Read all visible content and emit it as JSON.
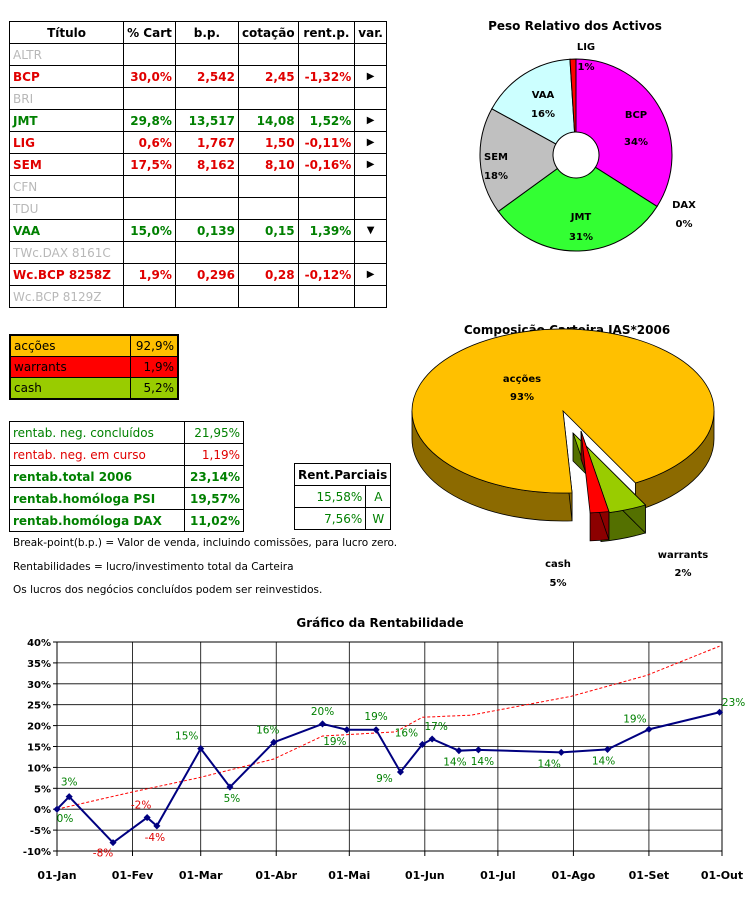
{
  "holdings_table": {
    "headers": [
      "Título",
      "% Cart",
      "b.p.",
      "cotação",
      "rent.p.",
      "var."
    ],
    "rows": [
      {
        "title": "ALTR",
        "pct": "",
        "bp": "",
        "quote": "",
        "rent": "",
        "var": "",
        "style": "grey"
      },
      {
        "title": "BCP",
        "pct": "30,0%",
        "bp": "2,542",
        "quote": "2,45",
        "rent": "-1,32%",
        "var": "right",
        "style": "red"
      },
      {
        "title": "BRI",
        "pct": "",
        "bp": "",
        "quote": "",
        "rent": "",
        "var": "",
        "style": "grey"
      },
      {
        "title": "JMT",
        "pct": "29,8%",
        "bp": "13,517",
        "quote": "14,08",
        "rent": "1,52%",
        "var": "right",
        "style": "green"
      },
      {
        "title": "LIG",
        "pct": "0,6%",
        "bp": "1,767",
        "quote": "1,50",
        "rent": "-0,11%",
        "var": "right",
        "style": "red"
      },
      {
        "title": "SEM",
        "pct": "17,5%",
        "bp": "8,162",
        "quote": "8,10",
        "rent": "-0,16%",
        "var": "right",
        "style": "red"
      },
      {
        "title": "CFN",
        "pct": "",
        "bp": "",
        "quote": "",
        "rent": "",
        "var": "",
        "style": "grey"
      },
      {
        "title": "TDU",
        "pct": "",
        "bp": "",
        "quote": "",
        "rent": "",
        "var": "",
        "style": "grey"
      },
      {
        "title": "VAA",
        "pct": "15,0%",
        "bp": "0,139",
        "quote": "0,15",
        "rent": "1,39%",
        "var": "down",
        "style": "green"
      },
      {
        "title": "TWc.DAX 8161C",
        "pct": "",
        "bp": "",
        "quote": "",
        "rent": "",
        "var": "",
        "style": "grey"
      },
      {
        "title": "Wc.BCP 8258Z",
        "pct": "1,9%",
        "bp": "0,296",
        "quote": "0,28",
        "rent": "-0,12%",
        "var": "right",
        "style": "red"
      },
      {
        "title": "Wc.BCP 8129Z",
        "pct": "",
        "bp": "",
        "quote": "",
        "rent": "",
        "var": "",
        "style": "grey"
      }
    ]
  },
  "allocation": [
    {
      "label": "acções",
      "value": "92,9%",
      "color": "#ffc000",
      "text_color": "#000000"
    },
    {
      "label": "warrants",
      "value": "1,9%",
      "color": "#ff0000",
      "text_color": "#000000"
    },
    {
      "label": "cash",
      "value": "5,2%",
      "color": "#99cc00",
      "text_color": "#000000"
    }
  ],
  "returns": [
    {
      "label": "rentab. neg. concluídos",
      "value": "21,95%",
      "style": "green-normal"
    },
    {
      "label": "rentab. neg. em curso",
      "value": "1,19%",
      "style": "red-normal"
    },
    {
      "label": "rentab.total 2006",
      "value": "23,14%",
      "style": "green"
    },
    {
      "label": "rentab.homóloga PSI",
      "value": "19,57%",
      "style": "green"
    },
    {
      "label": "rentab.homóloga DAX",
      "value": "11,02%",
      "style": "green"
    }
  ],
  "partial_returns": {
    "header": "Rent.Parciais",
    "rows": [
      {
        "value": "15,58%",
        "tag": "A"
      },
      {
        "value": "7,56%",
        "tag": "W"
      }
    ]
  },
  "notes": [
    "Break-point(b.p.) = Valor de venda, incluindo comissões, para lucro zero.",
    "Rentabilidades = lucro/investimento total da Carteira",
    "Os lucros dos negócios concluídos podem ser reinvestidos."
  ],
  "chart_data": [
    {
      "type": "pie",
      "title": "Peso Relativo dos Activos",
      "donut": true,
      "slices": [
        {
          "label": "BCP",
          "value": 34,
          "value_label": "34%",
          "color": "#ff00ff"
        },
        {
          "label": "DAX",
          "value": 0,
          "value_label": "0%",
          "color": "#000080"
        },
        {
          "label": "JMT",
          "value": 31,
          "value_label": "31%",
          "color": "#33ff33"
        },
        {
          "label": "SEM",
          "value": 18,
          "value_label": "18%",
          "color": "#c0c0c0"
        },
        {
          "label": "VAA",
          "value": 16,
          "value_label": "16%",
          "color": "#ccffff"
        },
        {
          "label": "LIG",
          "value": 1,
          "value_label": "1%",
          "color": "#ff0000"
        }
      ]
    },
    {
      "type": "pie",
      "title": "Composição Carteira JAS*2006",
      "three_d": true,
      "slices": [
        {
          "label": "acções",
          "value": 93,
          "value_label": "93%",
          "color": "#ffc000"
        },
        {
          "label": "warrants",
          "value": 2,
          "value_label": "2%",
          "color": "#ff0000"
        },
        {
          "label": "cash",
          "value": 5,
          "value_label": "5%",
          "color": "#99cc00"
        }
      ]
    },
    {
      "type": "line",
      "title": "Gráfico da Rentabilidade",
      "ylim": [
        -10,
        40
      ],
      "y_ticks": [
        "-10%",
        "-5%",
        "0%",
        "5%",
        "10%",
        "15%",
        "20%",
        "25%",
        "30%",
        "35%",
        "40%"
      ],
      "x_ticks": [
        "01-Jan",
        "01-Fev",
        "01-Mar",
        "01-Abr",
        "01-Mai",
        "01-Jun",
        "01-Jul",
        "01-Ago",
        "01-Set",
        "01-Out"
      ],
      "grid": true,
      "series": [
        {
          "style": "solid-marker",
          "color": "#000080",
          "points": [
            {
              "x": "2006-01-01",
              "y": 0,
              "label": "0%"
            },
            {
              "x": "2006-01-06",
              "y": 3,
              "label": "3%"
            },
            {
              "x": "2006-01-24",
              "y": -8,
              "label": "-8%"
            },
            {
              "x": "2006-02-07",
              "y": -2,
              "label": "-2%"
            },
            {
              "x": "2006-02-11",
              "y": -4,
              "label": "-4%"
            },
            {
              "x": "2006-03-01",
              "y": 14.5,
              "label": "15%"
            },
            {
              "x": "2006-03-13",
              "y": 5.3,
              "label": "5%"
            },
            {
              "x": "2006-03-31",
              "y": 16,
              "label": "16%"
            },
            {
              "x": "2006-04-20",
              "y": 20.4,
              "label": "20%"
            },
            {
              "x": "2006-04-30",
              "y": 19,
              "label": "19%"
            },
            {
              "x": "2006-05-12",
              "y": 19,
              "label": "19%"
            },
            {
              "x": "2006-05-22",
              "y": 8.9,
              "label": "9%"
            },
            {
              "x": "2006-05-31",
              "y": 15.5,
              "label": "16%"
            },
            {
              "x": "2006-06-04",
              "y": 16.8,
              "label": "17%"
            },
            {
              "x": "2006-06-15",
              "y": 14,
              "label": "14%"
            },
            {
              "x": "2006-06-23",
              "y": 14.2,
              "label": "14%"
            },
            {
              "x": "2006-07-27",
              "y": 13.6,
              "label": "14%"
            },
            {
              "x": "2006-08-15",
              "y": 14.3,
              "label": "14%"
            },
            {
              "x": "2006-09-01",
              "y": 19.1,
              "label": "19%"
            },
            {
              "x": "2006-09-30",
              "y": 23.2,
              "label": "23%"
            }
          ]
        },
        {
          "style": "dashed",
          "color": "#ff0000",
          "points": [
            {
              "x": "2006-01-01",
              "y": 0
            },
            {
              "x": "2006-01-31",
              "y": 4
            },
            {
              "x": "2006-02-28",
              "y": 7.5
            },
            {
              "x": "2006-03-31",
              "y": 12
            },
            {
              "x": "2006-04-20",
              "y": 17.5
            },
            {
              "x": "2006-05-20",
              "y": 18.5
            },
            {
              "x": "2006-05-31",
              "y": 22
            },
            {
              "x": "2006-06-20",
              "y": 22.5
            },
            {
              "x": "2006-07-31",
              "y": 27
            },
            {
              "x": "2006-08-31",
              "y": 32
            },
            {
              "x": "2006-09-30",
              "y": 39
            }
          ]
        }
      ]
    }
  ]
}
